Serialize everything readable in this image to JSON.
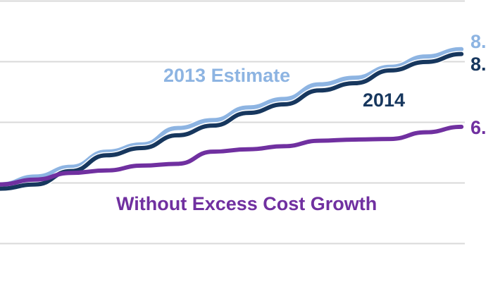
{
  "chart_data": {
    "type": "line",
    "title": "",
    "xlabel": "",
    "ylabel": "",
    "grid": true,
    "gridlines": [
      0,
      1,
      2,
      3,
      4
    ],
    "ylim": [
      -0.65,
      4
    ],
    "x": [
      0,
      1,
      2,
      3,
      4,
      5,
      6,
      7,
      8,
      9,
      10,
      11,
      12,
      13
    ],
    "series": [
      {
        "name": "2013 Estimate",
        "color": "#8db4e2",
        "end_label": "8.",
        "values": [
          0.97,
          1.1,
          1.26,
          1.51,
          1.63,
          1.9,
          2.03,
          2.24,
          2.38,
          2.62,
          2.73,
          2.91,
          3.08,
          3.2
        ]
      },
      {
        "name": "2014",
        "color": "#17375e",
        "end_label": "8.",
        "values": [
          0.9,
          0.97,
          1.19,
          1.45,
          1.57,
          1.78,
          1.94,
          2.15,
          2.29,
          2.52,
          2.64,
          2.85,
          2.99,
          3.12
        ]
      },
      {
        "name": "Without Excess Cost Growth",
        "color": "#7030a0",
        "end_label": "6.",
        "values": [
          0.97,
          1.05,
          1.16,
          1.2,
          1.28,
          1.31,
          1.51,
          1.55,
          1.6,
          1.69,
          1.71,
          1.72,
          1.83,
          1.92
        ]
      }
    ]
  }
}
